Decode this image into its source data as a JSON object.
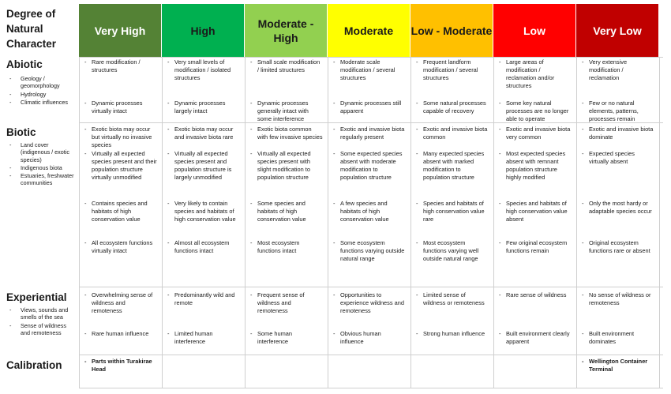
{
  "corner_title": "Degree of Natural Character",
  "columns": [
    {
      "label": "Very High",
      "bg": "#548235",
      "fg": "#ffffff"
    },
    {
      "label": "High",
      "bg": "#00b050",
      "fg": "#1a1a1a"
    },
    {
      "label": "Moderate - High",
      "bg": "#92d050",
      "fg": "#1a1a1a"
    },
    {
      "label": "Moderate",
      "bg": "#ffff00",
      "fg": "#1a1a1a"
    },
    {
      "label": "Low - Moderate",
      "bg": "#ffc000",
      "fg": "#1a1a1a"
    },
    {
      "label": "Low",
      "bg": "#ff0000",
      "fg": "#ffffff"
    },
    {
      "label": "Very Low",
      "bg": "#c00000",
      "fg": "#ffffff"
    }
  ],
  "rows": {
    "abiotic": {
      "title": "Abiotic",
      "subs": [
        "Geology / geomorphology",
        "Hydrology",
        "Climatic influences"
      ]
    },
    "biotic": {
      "title": "Biotic",
      "subs": [
        "Land cover (indigenous / exotic species)",
        "Indigenous biota",
        "Estuaries, freshwater communities"
      ]
    },
    "experiential": {
      "title": "Experiential",
      "subs": [
        "Views, sounds and smells of the sea",
        "Sense of wildness and remoteness"
      ]
    },
    "calibration": {
      "title": "Calibration",
      "subs": []
    }
  },
  "cells": {
    "abiotic_1": [
      "Rare modification / structures",
      "Very small levels of modification / isolated structures",
      "Small scale modification / limited structures",
      "Moderate scale modification / several structures",
      "Frequent landform modification / several structures",
      "Large areas of modification / reclamation and/or structures",
      "Very extensive modification / reclamation"
    ],
    "abiotic_2": [
      "Dynamic processes virtually intact",
      "Dynamic processes largely intact",
      "Dynamic processes generally intact with some interference",
      "Dynamic processes still apparent",
      "Some natural processes capable of recovery",
      "Some key natural processes are no longer able to operate",
      "Few or no natural elements, patterns, processes remain"
    ],
    "biotic_1": [
      "Exotic biota may occur but virtually no invasive species",
      "Exotic biota may occur and invasive biota rare",
      "Exotic biota common with few invasive species",
      "Exotic and invasive biota regularly present",
      "Exotic and invasive biota common",
      "Exotic and invasive biota very common",
      "Exotic and invasive biota dominate"
    ],
    "biotic_2": [
      "Virtually all expected species present and their population structure virtually unmodified",
      "Virtually all expected species present and population structure is largely unmodified",
      "Virtually all expected species present with slight modification to population structure",
      "Some expected species absent with moderate modification to population structure",
      "Many expected species absent with marked modification to population structure",
      "Most expected species absent with remnant population structure highly modified",
      "Expected species virtually absent"
    ],
    "biotic_3": [
      "Contains species and habitats of high conservation value",
      "Very likely to contain species and habitats of high conservation value",
      "Some species and habitats of high conservation value",
      "A few species and habitats of high conservation value",
      "Species and habitats of high conservation value rare",
      "Species and habitats of high conservation value absent",
      "Only the most hardy or adaptable species occur"
    ],
    "biotic_4": [
      "All ecosystem functions virtually intact",
      "Almost all ecosystem functions intact",
      "Most ecosystem functions intact",
      "Some ecosystem functions varying outside natural range",
      "Most ecosystem functions varying well outside natural range",
      "Few original ecosystem functions remain",
      "Original ecosystem functions rare or absent"
    ],
    "exp_1": [
      "Overwhelming sense of wildness and remoteness",
      "Predominantly wild and remote",
      "Frequent sense of wildness and remoteness",
      "Opportunities to experience wildness and remoteness",
      "Limited sense of wildness or remoteness",
      "Rare sense of wildness",
      "No sense of wildness or remoteness"
    ],
    "exp_2": [
      "Rare human influence",
      "Limited human interference",
      "Some human interference",
      "Obvious human influence",
      "Strong human influence",
      "Built environment clearly apparent",
      "Built environment dominates"
    ],
    "calibration": [
      "Parts within Turakirae Head",
      "",
      "",
      "",
      "",
      "",
      "Wellington Container Terminal"
    ]
  }
}
